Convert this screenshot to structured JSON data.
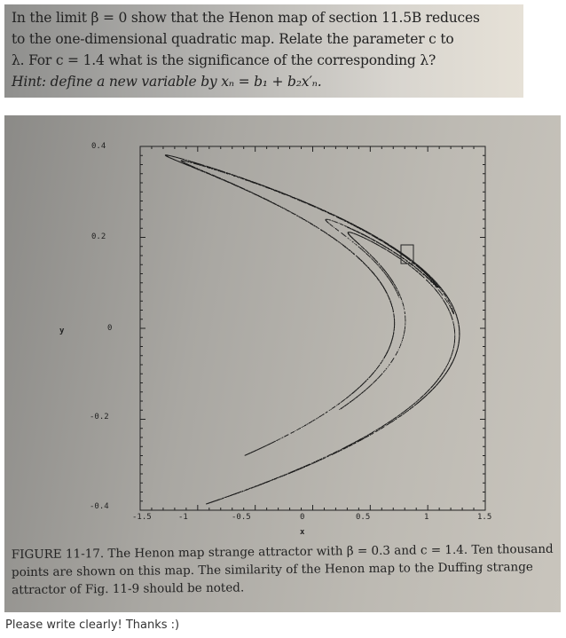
{
  "question_image": {
    "lines": [
      "In the limit β = 0 show that the Henon map of section 11.5B reduces",
      "to the one-dimensional quadratic map. Relate the parameter c to",
      "λ. For c = 1.4 what is the significance of the corresponding λ?"
    ],
    "hint": "Hint: define a new variable by xₙ = b₁ + b₂x′ₙ."
  },
  "figure": {
    "x_ticks": [
      "-1.5",
      "-1",
      "-0.5",
      "0",
      "0.5",
      "1",
      "1.5"
    ],
    "y_ticks": [
      "0.4",
      "0.2",
      "0",
      "-0.2",
      "-0.4"
    ],
    "xlabel": "x",
    "ylabel": "y",
    "caption": "FIGURE 11-17. The Henon map strange attractor with β = 0.3 and c = 1.4. Ten thousand points are shown on this map. The similarity of the Henon map to the Duffing strange attractor of Fig. 11-9 should be noted."
  },
  "footer_text": "Please write clearly! Thanks :)"
}
